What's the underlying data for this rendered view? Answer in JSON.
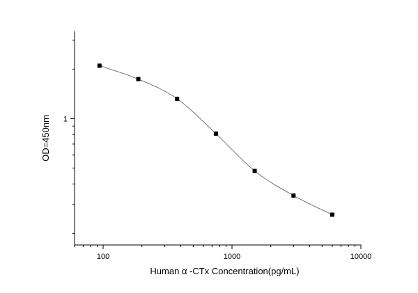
{
  "chart_data": {
    "type": "scatter",
    "title": "",
    "xlabel": "Human α -CTx Concentration(pg/mL)",
    "ylabel": "OD=450nm",
    "x_scale": "log",
    "y_scale": "log",
    "xlim": [
      60,
      10000
    ],
    "ylim": [
      0.17,
      3.4
    ],
    "x_ticks": [
      {
        "value": 100,
        "label": "100"
      },
      {
        "value": 1000,
        "label": "1000"
      },
      {
        "value": 10000,
        "label": "10000"
      }
    ],
    "y_ticks": [
      {
        "value": 1,
        "label": "1"
      }
    ],
    "grid": false,
    "legend": "none",
    "series": [
      {
        "x": [
          93.75,
          187.5,
          375,
          750,
          1500,
          3000,
          6000
        ],
        "y": [
          2.1,
          1.74,
          1.32,
          0.81,
          0.48,
          0.34,
          0.26
        ]
      }
    ],
    "marker_color": "#000000",
    "line_color": "#555555"
  }
}
